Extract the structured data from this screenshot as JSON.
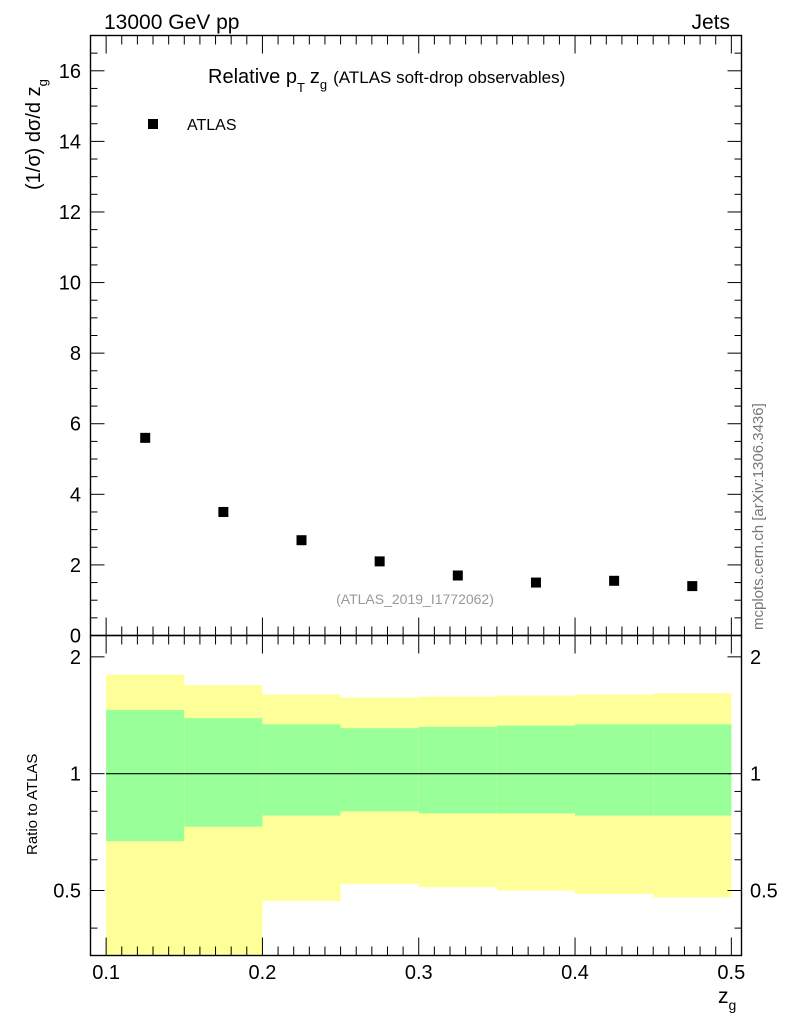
{
  "header": {
    "left": "13000 GeV pp",
    "right": "Jets"
  },
  "side_label": "mcplots.cern.ch [arXiv:1306.3436]",
  "watermark": "(ATLAS_2019_I1772062)",
  "colors": {
    "band_outer": "#ffff99",
    "band_inner": "#99ff99",
    "marker": "#000000",
    "ref_line": "#000000"
  },
  "chart_data": [
    {
      "type": "scatter",
      "title_main": "Relative p",
      "title_sub": "T",
      "title_var": "z",
      "title_var_sub": "g",
      "title_rest": "(ATLAS soft-drop observables)",
      "ylabel_main": "(1/σ) dσ/d z",
      "ylabel_sub": "g",
      "xlim": [
        0.09,
        0.5065
      ],
      "ylim": [
        0,
        17
      ],
      "yticks": [
        0,
        2,
        4,
        6,
        8,
        10,
        12,
        14,
        16
      ],
      "ytick_labels": [
        "0",
        "2",
        "4",
        "6",
        "8",
        "10",
        "12",
        "14",
        "16"
      ],
      "legend": {
        "label": "ATLAS",
        "placement": "top-left"
      },
      "series": [
        {
          "name": "ATLAS",
          "x": [
            0.125,
            0.175,
            0.225,
            0.275,
            0.325,
            0.375,
            0.425,
            0.475
          ],
          "y": [
            5.6,
            3.5,
            2.7,
            2.1,
            1.7,
            1.5,
            1.55,
            1.4
          ]
        }
      ]
    },
    {
      "type": "area",
      "ylabel": "Ratio to ATLAS",
      "xlabel_main": "z",
      "xlabel_sub": "g",
      "xlim": [
        0.09,
        0.5065
      ],
      "ylim": [
        0.34,
        2.27
      ],
      "yticks": [
        0.5,
        1,
        2
      ],
      "ytick_labels": [
        "0.5",
        "1",
        "2"
      ],
      "xticks": [
        0.1,
        0.2,
        0.3,
        0.4,
        0.5
      ],
      "xtick_labels": [
        "0.1",
        "0.2",
        "0.3",
        "0.4",
        "0.5"
      ],
      "ref_value": 1,
      "bins": [
        {
          "lo": 0.1,
          "hi": 0.15,
          "outer": [
            0.3,
            1.8
          ],
          "inner": [
            0.67,
            1.46
          ]
        },
        {
          "lo": 0.15,
          "hi": 0.2,
          "outer": [
            0.3,
            1.69
          ],
          "inner": [
            0.73,
            1.39
          ]
        },
        {
          "lo": 0.2,
          "hi": 0.25,
          "outer": [
            0.47,
            1.6
          ],
          "inner": [
            0.78,
            1.34
          ]
        },
        {
          "lo": 0.25,
          "hi": 0.3,
          "outer": [
            0.52,
            1.57
          ],
          "inner": [
            0.8,
            1.31
          ]
        },
        {
          "lo": 0.3,
          "hi": 0.35,
          "outer": [
            0.51,
            1.58
          ],
          "inner": [
            0.79,
            1.32
          ]
        },
        {
          "lo": 0.35,
          "hi": 0.4,
          "outer": [
            0.5,
            1.59
          ],
          "inner": [
            0.79,
            1.33
          ]
        },
        {
          "lo": 0.4,
          "hi": 0.45,
          "outer": [
            0.49,
            1.6
          ],
          "inner": [
            0.78,
            1.34
          ]
        },
        {
          "lo": 0.45,
          "hi": 0.5,
          "outer": [
            0.48,
            1.61
          ],
          "inner": [
            0.78,
            1.34
          ]
        }
      ]
    }
  ]
}
